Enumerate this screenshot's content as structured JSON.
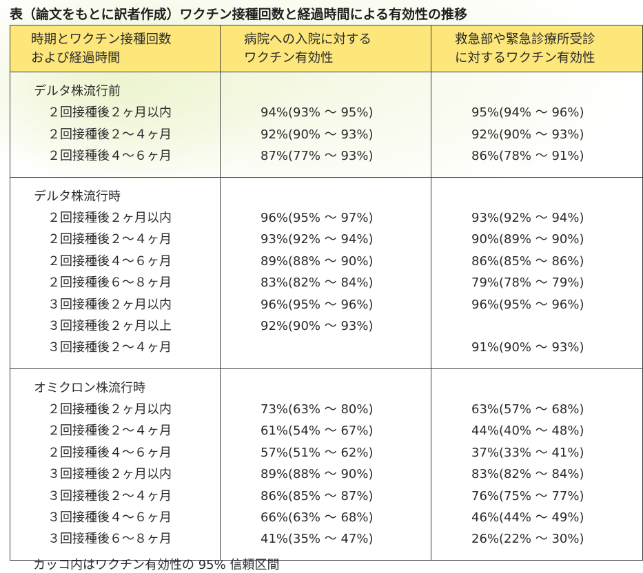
{
  "title": "表（論文をもとに訳者作成）ワクチン接種回数と経過時間による有効性の推移",
  "headers": {
    "col1": [
      "時期とワクチン接種回数",
      "および経過時間"
    ],
    "col2": [
      "病院への入院に対する",
      "ワクチン有効性"
    ],
    "col3": [
      "救急部や緊急診療所受診",
      "に対するワクチン有効性"
    ]
  },
  "groups": [
    {
      "label": "デルタ株流行前",
      "rows": [
        {
          "period": "２回接種後２ヶ月以内",
          "hospital": "94%(93% ～ 95%)",
          "emergency": "95%(94% ～ 96%)"
        },
        {
          "period": "２回接種後２～４ヶ月",
          "hospital": "92%(90% ～ 93%)",
          "emergency": "92%(90% ～ 93%)"
        },
        {
          "period": "２回接種後４～６ヶ月",
          "hospital": "87%(77% ～ 93%)",
          "emergency": "86%(78% ～ 91%)"
        }
      ]
    },
    {
      "label": "デルタ株流行時",
      "rows": [
        {
          "period": "２回接種後２ヶ月以内",
          "hospital": "96%(95% ～ 97%)",
          "emergency": "93%(92% ～ 94%)"
        },
        {
          "period": "２回接種後２～４ヶ月",
          "hospital": "93%(92% ～ 94%)",
          "emergency": "90%(89% ～ 90%)"
        },
        {
          "period": "２回接種後４～６ヶ月",
          "hospital": "89%(88% ～ 90%)",
          "emergency": "86%(85% ～ 86%)"
        },
        {
          "period": "２回接種後６～８ヶ月",
          "hospital": "83%(82% ～ 84%)",
          "emergency": "79%(78% ～ 79%)"
        },
        {
          "period": "３回接種後２ヶ月以内",
          "hospital": "96%(95% ～ 96%)",
          "emergency": "96%(95% ～ 96%)"
        },
        {
          "period": "３回接種後２ヶ月以上",
          "hospital": "92%(90% ～ 93%)",
          "emergency": ""
        },
        {
          "period": "３回接種後２～４ヶ月",
          "hospital": "",
          "emergency": "91%(90% ～ 93%)"
        }
      ]
    },
    {
      "label": "オミクロン株流行時",
      "rows": [
        {
          "period": "２回接種後２ヶ月以内",
          "hospital": "73%(63% ～ 80%)",
          "emergency": "63%(57% ～ 68%)"
        },
        {
          "period": "２回接種後２～４ヶ月",
          "hospital": "61%(54% ～ 67%)",
          "emergency": "44%(40% ～ 48%)"
        },
        {
          "period": "２回接種後４～６ヶ月",
          "hospital": "57%(51% ～ 62%)",
          "emergency": "37%(33% ～ 41%)"
        },
        {
          "period": "３回接種後２ヶ月以内",
          "hospital": "89%(88% ～ 90%)",
          "emergency": "83%(82% ～ 84%)"
        },
        {
          "period": "３回接種後２～４ヶ月",
          "hospital": "86%(85% ～ 87%)",
          "emergency": "76%(75% ～ 77%)"
        },
        {
          "period": "３回接種後４～６ヶ月",
          "hospital": "66%(63% ～ 68%)",
          "emergency": "46%(44% ～ 49%)"
        },
        {
          "period": "３回接種後６～８ヶ月",
          "hospital": "41%(35% ～ 47%)",
          "emergency": "26%(22% ～ 30%)"
        }
      ]
    }
  ],
  "footnote": "カッコ内はワクチン有効性の 95% 信頼区間",
  "colors": {
    "header_bg": "#fde67a",
    "border": "#3a3a3a",
    "text": "#2a2a2a"
  }
}
